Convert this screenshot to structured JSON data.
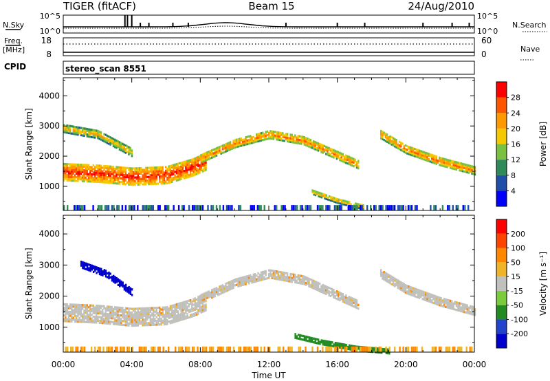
{
  "header": {
    "radar": "TIGER (fitACF)",
    "beam": "Beam 15",
    "date": "24/Aug/2010"
  },
  "nsky_panel": {
    "left_label": "N.Sky",
    "right_label": "N.Search",
    "left_ticks": [
      "10^5",
      "10^0"
    ],
    "right_ticks": [
      "10^5",
      "10^0"
    ]
  },
  "freq_panel": {
    "left_label_top": "Freq.",
    "left_label_bottom": "[MHz]",
    "right_label": "Nave",
    "left_ticks": [
      "18",
      "8"
    ],
    "right_ticks": [
      "60",
      "0"
    ],
    "cpid_label": "CPID",
    "cpid_value": "stereo_scan 8551"
  },
  "colors": {
    "power_scale": [
      "#0000ff",
      "#1f4fa8",
      "#2e8b57",
      "#7ac142",
      "#f5c800",
      "#ff9900",
      "#ff5500",
      "#ff0000"
    ],
    "velocity_scale": [
      "#0000cc",
      "#2244cc",
      "#228b22",
      "#7acc3c",
      "#c0c0bc",
      "#f0b428",
      "#ff8800",
      "#ff4400",
      "#ff0000"
    ],
    "ground_scatter": "#c0c0bc"
  },
  "chart_data": [
    {
      "type": "heatmap",
      "name": "power",
      "ylabel": "Slant Range [km]",
      "yticks": [
        1000,
        2000,
        3000,
        4000
      ],
      "ylim": [
        200,
        4600
      ],
      "xlim": [
        0,
        24
      ],
      "colorbar_label": "Power [dB]",
      "colorbar_ticks": [
        "4",
        "8",
        "12",
        "16",
        "20",
        "24",
        "28"
      ],
      "bands": [
        {
          "x": [
            0,
            2,
            4,
            6,
            7.5,
            8.3
          ],
          "center": [
            1450,
            1400,
            1300,
            1350,
            1600,
            1800
          ],
          "width": 550,
          "level": 7
        },
        {
          "x": [
            8,
            10,
            12,
            14,
            16,
            17.2
          ],
          "center": [
            1900,
            2400,
            2700,
            2500,
            2000,
            1700
          ],
          "width": 260,
          "level": 6
        },
        {
          "x": [
            18.5,
            20,
            22,
            24
          ],
          "center": [
            2700,
            2200,
            1800,
            1500
          ],
          "width": 260,
          "level": 6
        },
        {
          "x": [
            0,
            2,
            4
          ],
          "center": [
            2900,
            2700,
            2100
          ],
          "width": 260,
          "level": 5
        },
        {
          "x": [
            14.5,
            16,
            17.5
          ],
          "center": [
            800,
            500,
            300
          ],
          "width": 160,
          "level": 5
        }
      ]
    },
    {
      "type": "heatmap",
      "name": "velocity",
      "ylabel": "Slant Range [km]",
      "yticks": [
        1000,
        2000,
        3000,
        4000
      ],
      "ylim": [
        200,
        4600
      ],
      "xlim": [
        0,
        24
      ],
      "xlabel": "Time UT",
      "xticks": [
        "00:00",
        "04:00",
        "08:00",
        "12:00",
        "16:00",
        "20:00",
        "00:00"
      ],
      "colorbar_label": "Velocity [m s⁻¹]",
      "colorbar_ticks": [
        "-200",
        "-100",
        "-50",
        "-15",
        "15",
        "50",
        "100",
        "200"
      ],
      "bands": [
        {
          "x": [
            0,
            2,
            4,
            6,
            7.5,
            8.3
          ],
          "center": [
            1450,
            1400,
            1300,
            1350,
            1600,
            1800
          ],
          "width": 550,
          "level": 4
        },
        {
          "x": [
            8,
            10,
            12,
            14,
            16,
            17.2
          ],
          "center": [
            1900,
            2400,
            2700,
            2500,
            2000,
            1700
          ],
          "width": 260,
          "level": 4
        },
        {
          "x": [
            18.5,
            20,
            22,
            24
          ],
          "center": [
            2700,
            2200,
            1800,
            1500
          ],
          "width": 260,
          "level": 4
        },
        {
          "x": [
            1,
            2.5,
            4
          ],
          "center": [
            3000,
            2700,
            2100
          ],
          "width": 200,
          "level": 0
        },
        {
          "x": [
            13.5,
            15,
            17,
            19
          ],
          "center": [
            700,
            500,
            300,
            200
          ],
          "width": 130,
          "level": 2
        }
      ]
    }
  ]
}
